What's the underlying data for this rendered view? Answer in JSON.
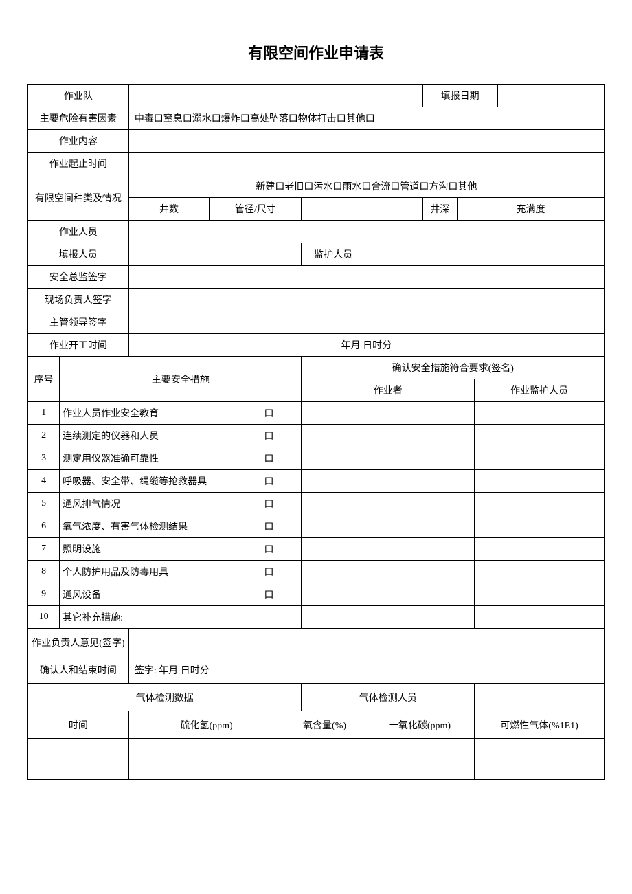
{
  "title": "有限空间作业申请表",
  "rows": {
    "team": "作业队",
    "reportDate": "填报日期",
    "hazardFactorsLabel": "主要危险有害因素",
    "hazardFactorsValue": "中毒口窒息口溺水口爆炸口高处坠落口物体打击口其他口",
    "workContent": "作业内容",
    "workTimeRange": "作业起止时间",
    "spaceTypeLabel": "有限空间种类及情况",
    "spaceTypeValue": "新建口老旧口污水口雨水口合流口管道口方沟口其他",
    "wellCount": "井数",
    "pipeSize": "管径/尺寸",
    "wellDepth": "井深",
    "fillLevel": "充满度",
    "workers": "作业人员",
    "reporter": "填报人员",
    "supervisor": "监护人员",
    "safetyDirectorSign": "安全总监签字",
    "siteManagerSign": "现场负责人签字",
    "leaderSign": "主管领导签字",
    "startTimeLabel": "作业开工时间",
    "startTimeValue": "年月            日时分",
    "seqNo": "序号",
    "mainMeasures": "主要安全措施",
    "confirmMeasures": "确认安全措施符合要求(签名)",
    "worker": "作业者",
    "workSupervisor": "作业监护人员",
    "measures": [
      {
        "no": "1",
        "text": "作业人员作业安全教育",
        "box": "口"
      },
      {
        "no": "2",
        "text": "连续测定的仪器和人员",
        "box": "口"
      },
      {
        "no": "3",
        "text": "测定用仪器准确可靠性",
        "box": "口"
      },
      {
        "no": "4",
        "text": "呼吸器、安全带、绳缆等抢救器具",
        "box": "口"
      },
      {
        "no": "5",
        "text": "通风排气情况",
        "box": "口"
      },
      {
        "no": "6",
        "text": "氧气浓度、有害气体检测结果",
        "box": "口"
      },
      {
        "no": "7",
        "text": "照明设施",
        "box": "口"
      },
      {
        "no": "8",
        "text": "个人防护用品及防毒用具",
        "box": "口"
      },
      {
        "no": "9",
        "text": "通风设备",
        "box": "口"
      },
      {
        "no": "10",
        "text": "其它补充措施:",
        "box": ""
      }
    ],
    "managerOpinion": "作业负责人意见(签字)",
    "confirmEndTimeLabel": "确认人和结束时间",
    "confirmEndTimeValue": "签字:                                                              年月              日时分",
    "gasDataLabel": "气体检测数据",
    "gasPersonnel": "气体检测人员",
    "time": "时间",
    "h2s": "硫化氢(ppm)",
    "o2": "氧含量(%)",
    "co": "一氧化碳(ppm)",
    "flammable": "可燃性气体(%1E1)"
  }
}
